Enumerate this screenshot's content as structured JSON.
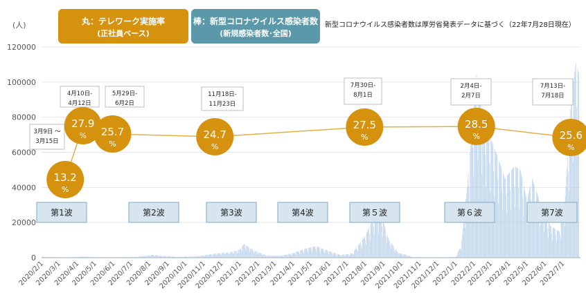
{
  "legend": {
    "circle_title": "丸：テレワーク実施率",
    "circle_sub": "(正社員ベース)",
    "bar_title": "棒：新型コロナウイルス感染者数",
    "bar_sub": "(新規感染者数･全国)"
  },
  "source_note": "新型コロナウイルス感染者数は厚労省発表データに基づく（22年7月28日現在）",
  "unit_label": "(人)",
  "colors": {
    "circle": "#d4920f",
    "line": "#e2b040",
    "bar": "#bcd3ea",
    "wave_fill": "#d6e5ee",
    "wave_border": "#7fa9c2"
  },
  "chart_data": {
    "type": "bar",
    "ylim": [
      0,
      120000
    ],
    "yticks": [
      0,
      20000,
      40000,
      60000,
      80000,
      100000,
      120000
    ],
    "xticks": [
      "2020/2/1",
      "2020/3/1",
      "2020/4/1",
      "2020/5/1",
      "2020/6/1",
      "2020/7/1",
      "2020/8/1",
      "2020/9/1",
      "2020/10/1",
      "2020/11/1",
      "2020/12/1",
      "2021/1/1",
      "2021/2/1",
      "2021/3/1",
      "2021/4/1",
      "2021/5/1",
      "2021/6/1",
      "2021/7/1",
      "2021/8/1",
      "2021/9/1",
      "2021/10/1",
      "2021/11/1",
      "2021/12/1",
      "2022/1/1",
      "2022/2/1",
      "2022/3/1",
      "2022/4/1",
      "2022/5/1",
      "2022/6/1",
      "2022/7/1"
    ],
    "cases_keypoints": [
      [
        "2020/2/1",
        0
      ],
      [
        "2020/3/20",
        200
      ],
      [
        "2020/4/11",
        700
      ],
      [
        "2020/5/10",
        100
      ],
      [
        "2020/6/20",
        100
      ],
      [
        "2020/7/15",
        600
      ],
      [
        "2020/8/7",
        1600
      ],
      [
        "2020/8/25",
        900
      ],
      [
        "2020/9/20",
        500
      ],
      [
        "2020/10/20",
        700
      ],
      [
        "2020/11/20",
        2300
      ],
      [
        "2020/12/15",
        3000
      ],
      [
        "2020/12/31",
        4500
      ],
      [
        "2021/1/8",
        7900
      ],
      [
        "2021/1/25",
        4000
      ],
      [
        "2021/2/15",
        1300
      ],
      [
        "2021/3/10",
        1100
      ],
      [
        "2021/3/31",
        2500
      ],
      [
        "2021/4/25",
        5500
      ],
      [
        "2021/5/10",
        6500
      ],
      [
        "2021/5/25",
        4500
      ],
      [
        "2021/6/20",
        1500
      ],
      [
        "2021/7/10",
        2500
      ],
      [
        "2021/7/31",
        12000
      ],
      [
        "2021/8/20",
        25800
      ],
      [
        "2021/8/28",
        24000
      ],
      [
        "2021/9/10",
        10000
      ],
      [
        "2021/9/25",
        3000
      ],
      [
        "2021/10/20",
        400
      ],
      [
        "2021/11/20",
        150
      ],
      [
        "2021/12/20",
        250
      ],
      [
        "2022/1/1",
        500
      ],
      [
        "2022/1/10",
        7000
      ],
      [
        "2022/1/20",
        40000
      ],
      [
        "2022/2/5",
        104500
      ],
      [
        "2022/2/20",
        75000
      ],
      [
        "2022/3/10",
        60000
      ],
      [
        "2022/3/25",
        45000
      ],
      [
        "2022/4/10",
        52000
      ],
      [
        "2022/4/20",
        50000
      ],
      [
        "2022/5/1",
        33000
      ],
      [
        "2022/5/10",
        45000
      ],
      [
        "2022/5/25",
        30000
      ],
      [
        "2022/6/10",
        18000
      ],
      [
        "2022/6/25",
        15000
      ],
      [
        "2022/7/5",
        35000
      ],
      [
        "2022/7/15",
        90000
      ],
      [
        "2022/7/23",
        111000
      ],
      [
        "2022/7/28",
        105000
      ]
    ],
    "telework": [
      {
        "date": "2020/3/12",
        "value": 13.2,
        "period": [
          "3月9日 ～",
          "3月15日"
        ]
      },
      {
        "date": "2020/4/11",
        "value": 27.9,
        "period": [
          "4月10日-",
          "4月12日"
        ]
      },
      {
        "date": "2020/5/31",
        "value": 25.7,
        "period": [
          "5月29日-",
          "6月2日"
        ]
      },
      {
        "date": "2020/11/20",
        "value": 24.7,
        "period": [
          "11月18日-",
          "11月23日"
        ]
      },
      {
        "date": "2021/7/31",
        "value": 27.5,
        "period": [
          "7月30日-",
          "8月1日"
        ]
      },
      {
        "date": "2022/2/5",
        "value": 28.5,
        "period": [
          "2月4日-",
          "2月7日"
        ]
      },
      {
        "date": "2022/7/15",
        "value": 25.6,
        "period": [
          "7月13日-",
          "7月18日"
        ]
      }
    ],
    "waves": [
      "第1波",
      "第2波",
      "第3波",
      "第4波",
      "第５波",
      "第６波",
      "第7波"
    ],
    "percent_sign": "%"
  }
}
